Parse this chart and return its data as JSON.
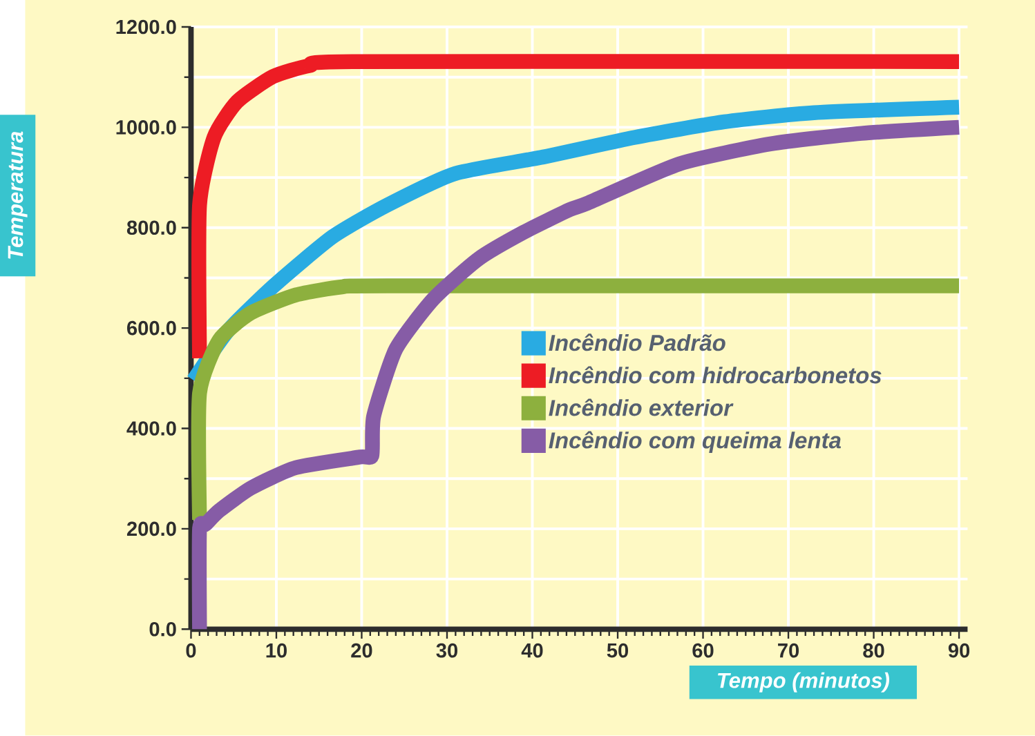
{
  "chart_data": {
    "type": "line",
    "xlabel": "Tempo (minutos)",
    "ylabel": "Temperatura",
    "xlim": [
      0,
      91
    ],
    "ylim": [
      0,
      1200
    ],
    "xticks": [
      0,
      10,
      20,
      30,
      40,
      50,
      60,
      70,
      80,
      90
    ],
    "yticks": [
      {
        "value": 0,
        "label": "0.0"
      },
      {
        "value": 200,
        "label": "200.0"
      },
      {
        "value": 400,
        "label": "400.0"
      },
      {
        "value": 600,
        "label": "600.0"
      },
      {
        "value": 800,
        "label": "800.0"
      },
      {
        "value": 1000,
        "label": "1000.0"
      },
      {
        "value": 1200,
        "label": "1200.0"
      }
    ],
    "grid": true,
    "legend": "bottom right",
    "series": [
      {
        "name": "Incêndio Padrão",
        "color": "#29abe2",
        "x": [
          0.3,
          4.3,
          9.7,
          16.6,
          23,
          31,
          41,
          52,
          62.5,
          73,
          90
        ],
        "values": [
          496,
          594,
          684,
          782,
          845,
          908,
          940,
          980,
          1011,
          1029,
          1040
        ]
      },
      {
        "name": "Incêndio com hidrocarbonetos",
        "color": "#ed1c24",
        "x": [
          1,
          1,
          2.7,
          5.4,
          9.6,
          13.9,
          19.2,
          90
        ],
        "values": [
          540,
          845,
          980,
          1051,
          1101,
          1123,
          1131,
          1131
        ]
      },
      {
        "name": "Incêndio exterior",
        "color": "#8db03e",
        "x": [
          1,
          1,
          3.3,
          7,
          12.3,
          17.7,
          23,
          90
        ],
        "values": [
          218,
          470,
          576,
          630,
          666,
          682,
          684,
          684
        ]
      },
      {
        "name": "Incêndio com queima lenta",
        "color": "#865ca6",
        "x": [
          1,
          1,
          1.7,
          3.3,
          7,
          12.3,
          19.8,
          21.2,
          21.4,
          24,
          28.4,
          33.7,
          39,
          44.4,
          46.5,
          57.2,
          67.9,
          78.6,
          90
        ],
        "values": [
          0,
          200,
          209,
          236,
          281,
          322,
          343,
          346,
          424,
          558,
          658,
          738,
          791,
          836,
          849,
          927,
          967,
          988,
          1000
        ]
      }
    ]
  }
}
